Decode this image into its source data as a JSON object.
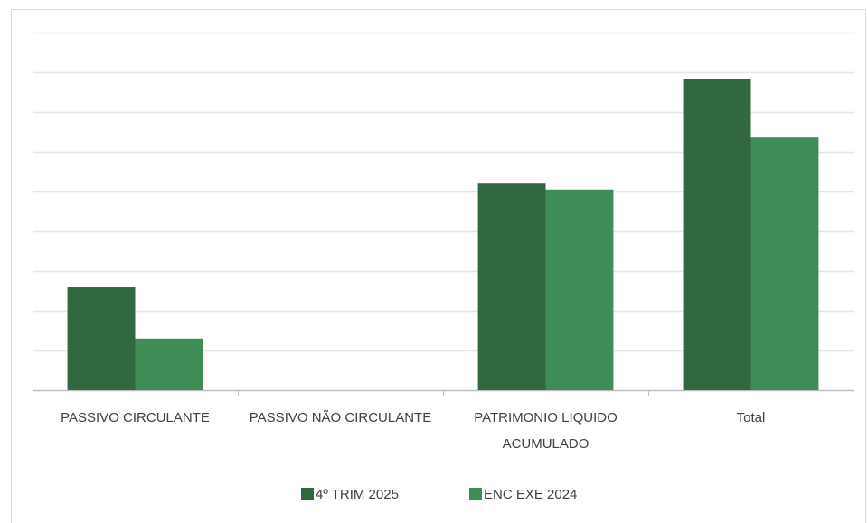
{
  "chart_data": {
    "type": "bar",
    "categories": [
      "PASSIVO CIRCULANTE",
      "PASSIVO NÃO CIRCULANTE",
      "PATRIMONIO LIQUIDO ACUMULADO",
      "Total"
    ],
    "series": [
      {
        "name": "4º TRIM 2025",
        "color": "#31683f",
        "values": [
          2.59,
          0,
          5.2,
          7.82
        ]
      },
      {
        "name": "ENC EXE 2024",
        "color": "#3f8c56",
        "values": [
          1.3,
          0,
          5.05,
          6.36
        ]
      }
    ],
    "ylim": [
      0,
      9
    ],
    "yticks": [
      0,
      1,
      2,
      3,
      4,
      5,
      6,
      7,
      8,
      9
    ],
    "grid": true,
    "show_tick_labels": false,
    "legend": "bottom"
  }
}
